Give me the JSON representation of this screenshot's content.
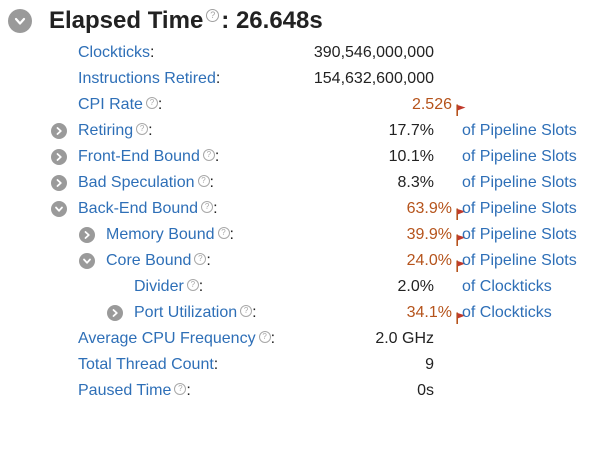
{
  "header": {
    "title": "Elapsed Time",
    "help_glyph": "?",
    "value": ": 26.648s"
  },
  "rows": [
    {
      "label": "Clockticks",
      "suffix": ":",
      "value": "390,546,000,000",
      "unit": "",
      "help": false,
      "flag": false,
      "toggle": "none"
    },
    {
      "label": "Instructions Retired",
      "suffix": ":",
      "value": "154,632,600,000",
      "unit": "",
      "help": false,
      "flag": false,
      "toggle": "none"
    },
    {
      "label": "CPI Rate",
      "suffix": ":",
      "value": "2.526",
      "unit": "",
      "help": true,
      "flag": true,
      "toggle": "none"
    },
    {
      "label": "Retiring",
      "suffix": ":",
      "value": "17.7%",
      "unit": "of Pipeline Slots",
      "help": true,
      "flag": false,
      "toggle": "collapsed"
    },
    {
      "label": "Front-End Bound",
      "suffix": ":",
      "value": "10.1%",
      "unit": "of Pipeline Slots",
      "help": true,
      "flag": false,
      "toggle": "collapsed"
    },
    {
      "label": "Bad Speculation",
      "suffix": ":",
      "value": "8.3%",
      "unit": "of Pipeline Slots",
      "help": true,
      "flag": false,
      "toggle": "collapsed"
    },
    {
      "label": "Back-End Bound",
      "suffix": ":",
      "value": "63.9%",
      "unit": "of Pipeline Slots",
      "help": true,
      "flag": true,
      "toggle": "expanded"
    },
    {
      "label": "Memory Bound",
      "suffix": ":",
      "value": "39.9%",
      "unit": "of Pipeline Slots",
      "help": true,
      "flag": true,
      "toggle": "collapsed"
    },
    {
      "label": "Core Bound",
      "suffix": ":",
      "value": "24.0%",
      "unit": "of Pipeline Slots",
      "help": true,
      "flag": true,
      "toggle": "expanded"
    },
    {
      "label": "Divider",
      "suffix": ":",
      "value": "2.0%",
      "unit": "of Clockticks",
      "help": true,
      "flag": false,
      "toggle": "none"
    },
    {
      "label": "Port Utilization",
      "suffix": ":",
      "value": "34.1%",
      "unit": "of Clockticks",
      "help": true,
      "flag": true,
      "toggle": "collapsed"
    },
    {
      "label": "Average CPU Frequency",
      "suffix": ":",
      "value": "2.0 GHz",
      "unit": "",
      "help": true,
      "flag": false,
      "toggle": "none"
    },
    {
      "label": "Total Thread Count",
      "suffix": ":",
      "value": "9",
      "unit": "",
      "help": false,
      "flag": false,
      "toggle": "none"
    },
    {
      "label": "Paused Time",
      "suffix": ":",
      "value": "0s",
      "unit": "",
      "help": true,
      "flag": false,
      "toggle": "none"
    }
  ],
  "colors": {
    "link": "#2e6fb7",
    "warning": "#b5531b",
    "toggle": "#9a9a9a"
  }
}
